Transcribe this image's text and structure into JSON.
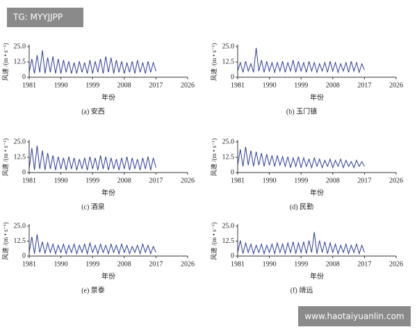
{
  "watermarks": {
    "top_left": "TG: MYYJJPP",
    "bottom_right": "www.haotaiyuanlin.com"
  },
  "chart_data": [
    {
      "type": "line",
      "title": "(a) 安西",
      "x_label": "年份",
      "y_label": "风速 /(m • s⁻¹)",
      "color": "#2b3b9c",
      "xlim": [
        1981,
        2026
      ],
      "xticks": [
        1981,
        1990,
        1999,
        2008,
        2017,
        2026
      ],
      "ylim": [
        0,
        25
      ],
      "yticks": [
        0,
        12.5,
        {
          "value": 25,
          "label": "25.0"
        }
      ],
      "x": [
        1981,
        1981.75,
        1982.5,
        1983.25,
        1984,
        1984.75,
        1985.5,
        1986.25,
        1987,
        1987.75,
        1988.5,
        1989.25,
        1990,
        1990.75,
        1991.5,
        1992.25,
        1993,
        1993.75,
        1994.5,
        1995.25,
        1996,
        1996.75,
        1997.5,
        1998.25,
        1999,
        1999.75,
        2000.5,
        2001.25,
        2002,
        2002.75,
        2003.5,
        2004.25,
        2005,
        2005.75,
        2006.5,
        2007.25,
        2008,
        2008.75,
        2009.5,
        2010.25,
        2011,
        2011.75,
        2012.5,
        2013.25,
        2014,
        2014.75,
        2015.5,
        2016.25,
        2017
      ],
      "values": [
        4,
        15,
        3,
        18,
        4,
        22,
        3,
        16,
        4,
        17,
        3,
        15,
        3,
        14,
        4,
        13,
        3,
        12,
        3,
        13,
        4,
        12,
        3,
        14,
        3,
        13,
        4,
        15,
        3,
        17,
        4,
        16,
        3,
        14,
        4,
        13,
        3,
        12,
        4,
        13,
        3,
        14,
        4,
        12,
        3,
        13,
        4,
        12,
        5
      ]
    },
    {
      "type": "line",
      "title": "(b) 玉门镇",
      "x_label": "年份",
      "y_label": "风速 /(m • s⁻¹)",
      "color": "#2b3b9c",
      "xlim": [
        1981,
        2026
      ],
      "xticks": [
        1981,
        1990,
        1999,
        2008,
        2017,
        2026
      ],
      "ylim": [
        0,
        25
      ],
      "yticks": [
        0,
        12.5,
        {
          "value": 25,
          "label": "25.0"
        }
      ],
      "x": [
        1981,
        1981.75,
        1982.5,
        1983.25,
        1984,
        1984.75,
        1985.5,
        1986.25,
        1987,
        1987.75,
        1988.5,
        1989.25,
        1990,
        1990.75,
        1991.5,
        1992.25,
        1993,
        1993.75,
        1994.5,
        1995.25,
        1996,
        1996.75,
        1997.5,
        1998.25,
        1999,
        1999.75,
        2000.5,
        2001.25,
        2002,
        2002.75,
        2003.5,
        2004.25,
        2005,
        2005.75,
        2006.5,
        2007.25,
        2008,
        2008.75,
        2009.5,
        2010.25,
        2011,
        2011.75,
        2012.5,
        2013.25,
        2014,
        2014.75,
        2015.5,
        2016.25,
        2017
      ],
      "values": [
        5,
        12,
        4,
        13,
        5,
        11,
        4,
        24,
        5,
        14,
        4,
        13,
        5,
        12,
        4,
        12,
        5,
        13,
        4,
        12,
        5,
        14,
        4,
        13,
        5,
        12,
        4,
        13,
        5,
        12,
        4,
        11,
        5,
        12,
        4,
        13,
        5,
        12,
        4,
        11,
        5,
        12,
        4,
        13,
        5,
        12,
        4,
        11,
        6
      ]
    },
    {
      "type": "line",
      "title": "(c) 酒泉",
      "x_label": "年份",
      "y_label": "风速 /(m • s⁻¹)",
      "color": "#2b3b9c",
      "xlim": [
        1981,
        2026
      ],
      "xticks": [
        1981,
        1990,
        1999,
        2008,
        2017,
        2026
      ],
      "ylim": [
        0,
        25
      ],
      "yticks": [
        0,
        12.5,
        {
          "value": 25,
          "label": "25.0"
        }
      ],
      "x": [
        1981,
        1981.75,
        1982.5,
        1983.25,
        1984,
        1984.75,
        1985.5,
        1986.25,
        1987,
        1987.75,
        1988.5,
        1989.25,
        1990,
        1990.75,
        1991.5,
        1992.25,
        1993,
        1993.75,
        1994.5,
        1995.25,
        1996,
        1996.75,
        1997.5,
        1998.25,
        1999,
        1999.75,
        2000.5,
        2001.25,
        2002,
        2002.75,
        2003.5,
        2004.25,
        2005,
        2005.75,
        2006.5,
        2007.25,
        2008,
        2008.75,
        2009.5,
        2010.25,
        2011,
        2011.75,
        2012.5,
        2013.25,
        2014,
        2014.75,
        2015.5,
        2016.25,
        2017
      ],
      "values": [
        3,
        20,
        2,
        22,
        3,
        18,
        2,
        16,
        3,
        14,
        2,
        13,
        3,
        12,
        2,
        13,
        3,
        12,
        2,
        11,
        3,
        12,
        2,
        13,
        3,
        12,
        2,
        14,
        3,
        13,
        2,
        12,
        3,
        11,
        2,
        12,
        3,
        13,
        2,
        12,
        3,
        11,
        2,
        12,
        3,
        13,
        2,
        12,
        4
      ]
    },
    {
      "type": "line",
      "title": "(d) 民勤",
      "x_label": "年份",
      "y_label": "风速 /(m • s⁻¹)",
      "color": "#2b3b9c",
      "xlim": [
        1981,
        2026
      ],
      "xticks": [
        1981,
        1990,
        1999,
        2008,
        2017,
        2026
      ],
      "ylim": [
        0,
        25
      ],
      "yticks": [
        0,
        12.5,
        {
          "value": 25,
          "label": "25.0"
        }
      ],
      "x": [
        1981,
        1981.75,
        1982.5,
        1983.25,
        1984,
        1984.75,
        1985.5,
        1986.25,
        1987,
        1987.75,
        1988.5,
        1989.25,
        1990,
        1990.75,
        1991.5,
        1992.25,
        1993,
        1993.75,
        1994.5,
        1995.25,
        1996,
        1996.75,
        1997.5,
        1998.25,
        1999,
        1999.75,
        2000.5,
        2001.25,
        2002,
        2002.75,
        2003.5,
        2004.25,
        2005,
        2005.75,
        2006.5,
        2007.25,
        2008,
        2008.75,
        2009.5,
        2010.25,
        2011,
        2011.75,
        2012.5,
        2013.25,
        2014,
        2014.75,
        2015.5,
        2016.25,
        2017
      ],
      "values": [
        6,
        19,
        5,
        21,
        6,
        18,
        5,
        17,
        6,
        16,
        5,
        15,
        6,
        14,
        5,
        14,
        6,
        13,
        5,
        13,
        4,
        12,
        5,
        13,
        4,
        12,
        5,
        11,
        4,
        12,
        5,
        11,
        4,
        10,
        5,
        11,
        4,
        10,
        5,
        11,
        4,
        10,
        5,
        9,
        4,
        10,
        5,
        9,
        5
      ]
    },
    {
      "type": "line",
      "title": "(e) 景泰",
      "x_label": "年份",
      "y_label": "风速 /(m • s⁻¹)",
      "color": "#2b3b9c",
      "xlim": [
        1981,
        2026
      ],
      "xticks": [
        1981,
        1990,
        1999,
        2008,
        2017,
        2026
      ],
      "ylim": [
        0,
        25
      ],
      "yticks": [
        0,
        12.5,
        {
          "value": 25,
          "label": "25.0"
        }
      ],
      "x": [
        1981,
        1981.75,
        1982.5,
        1983.25,
        1984,
        1984.75,
        1985.5,
        1986.25,
        1987,
        1987.75,
        1988.5,
        1989.25,
        1990,
        1990.75,
        1991.5,
        1992.25,
        1993,
        1993.75,
        1994.5,
        1995.25,
        1996,
        1996.75,
        1997.5,
        1998.25,
        1999,
        1999.75,
        2000.5,
        2001.25,
        2002,
        2002.75,
        2003.5,
        2004.25,
        2005,
        2005.75,
        2006.5,
        2007.25,
        2008,
        2008.75,
        2009.5,
        2010.25,
        2011,
        2011.75,
        2012.5,
        2013.25,
        2014,
        2014.75,
        2015.5,
        2016.25,
        2017
      ],
      "values": [
        3,
        16,
        2,
        18,
        3,
        12,
        2,
        11,
        3,
        10,
        2,
        9,
        3,
        10,
        2,
        9,
        3,
        10,
        2,
        9,
        3,
        10,
        2,
        11,
        3,
        9,
        2,
        10,
        3,
        9,
        2,
        10,
        3,
        9,
        2,
        10,
        3,
        9,
        2,
        8,
        3,
        9,
        2,
        10,
        3,
        9,
        2,
        8,
        3
      ]
    },
    {
      "type": "line",
      "title": "(f) 靖远",
      "x_label": "年份",
      "y_label": "风速 /(m • s⁻¹)",
      "color": "#2b3b9c",
      "xlim": [
        1981,
        2026
      ],
      "xticks": [
        1981,
        1990,
        1999,
        2008,
        2017,
        2026
      ],
      "ylim": [
        0,
        25
      ],
      "yticks": [
        0,
        12.5,
        {
          "value": 25,
          "label": "25.0"
        }
      ],
      "x": [
        1981,
        1981.75,
        1982.5,
        1983.25,
        1984,
        1984.75,
        1985.5,
        1986.25,
        1987,
        1987.75,
        1988.5,
        1989.25,
        1990,
        1990.75,
        1991.5,
        1992.25,
        1993,
        1993.75,
        1994.5,
        1995.25,
        1996,
        1996.75,
        1997.5,
        1998.25,
        1999,
        1999.75,
        2000.5,
        2001.25,
        2002,
        2002.75,
        2003.5,
        2004.25,
        2005,
        2005.75,
        2006.5,
        2007.25,
        2008,
        2008.75,
        2009.5,
        2010.25,
        2011,
        2011.75,
        2012.5,
        2013.25,
        2014,
        2014.75,
        2015.5,
        2016.25,
        2017
      ],
      "values": [
        3,
        13,
        2,
        11,
        3,
        10,
        2,
        9,
        3,
        10,
        2,
        9,
        3,
        10,
        2,
        11,
        3,
        10,
        2,
        11,
        3,
        12,
        2,
        11,
        3,
        12,
        2,
        13,
        3,
        20,
        2,
        13,
        3,
        12,
        2,
        11,
        3,
        10,
        2,
        9,
        3,
        10,
        2,
        9,
        3,
        10,
        2,
        9,
        3
      ]
    }
  ]
}
